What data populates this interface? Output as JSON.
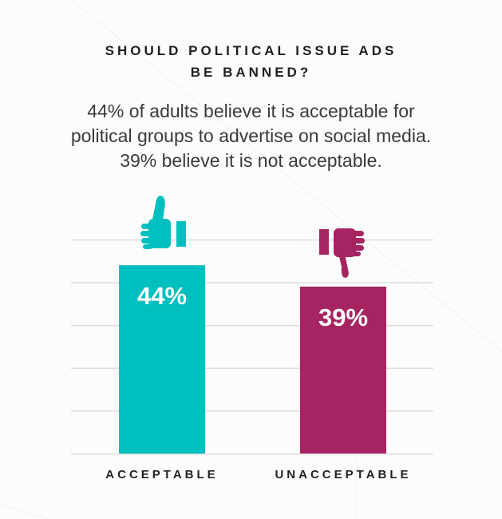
{
  "header": {
    "title_lines": [
      "SHOULD POLITICAL ISSUE ADS",
      "BE BANNED?"
    ],
    "subtitle_lines": [
      "44% of adults believe it is acceptable for",
      "political groups to advertise on social media.",
      "39% believe it is not acceptable."
    ]
  },
  "chart_data": {
    "type": "bar",
    "categories": [
      "ACCEPTABLE",
      "UNACCEPTABLE"
    ],
    "values": [
      44,
      39
    ],
    "data_labels": [
      "44%",
      "39%"
    ],
    "colors": [
      "#00bfbf",
      "#a62461"
    ],
    "icons": [
      "thumbs-up-icon",
      "thumbs-down-icon"
    ],
    "ylim": [
      0,
      50
    ],
    "grid": true,
    "title": "",
    "xlabel": "",
    "ylabel": ""
  }
}
